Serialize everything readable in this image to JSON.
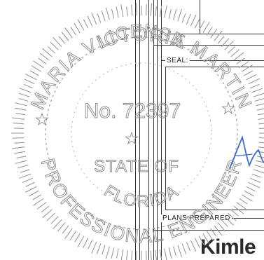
{
  "title_block": {
    "seal_label": "SEAL:",
    "plans_prepared_label": "PLANS PREPARED",
    "firm_name": "Kimle"
  },
  "seal": {
    "holder_name": "MARIA VICTORIA MARTIN",
    "license_word": "LICENSE",
    "license_number": "No. 72397",
    "state_text": "STATE OF",
    "state_name": "FLORIDA",
    "profession": "PROFESSIONAL ENGINEER",
    "ink_color": "#8a8a8a"
  },
  "signature": {
    "ink_color": "#3a6fd1"
  }
}
